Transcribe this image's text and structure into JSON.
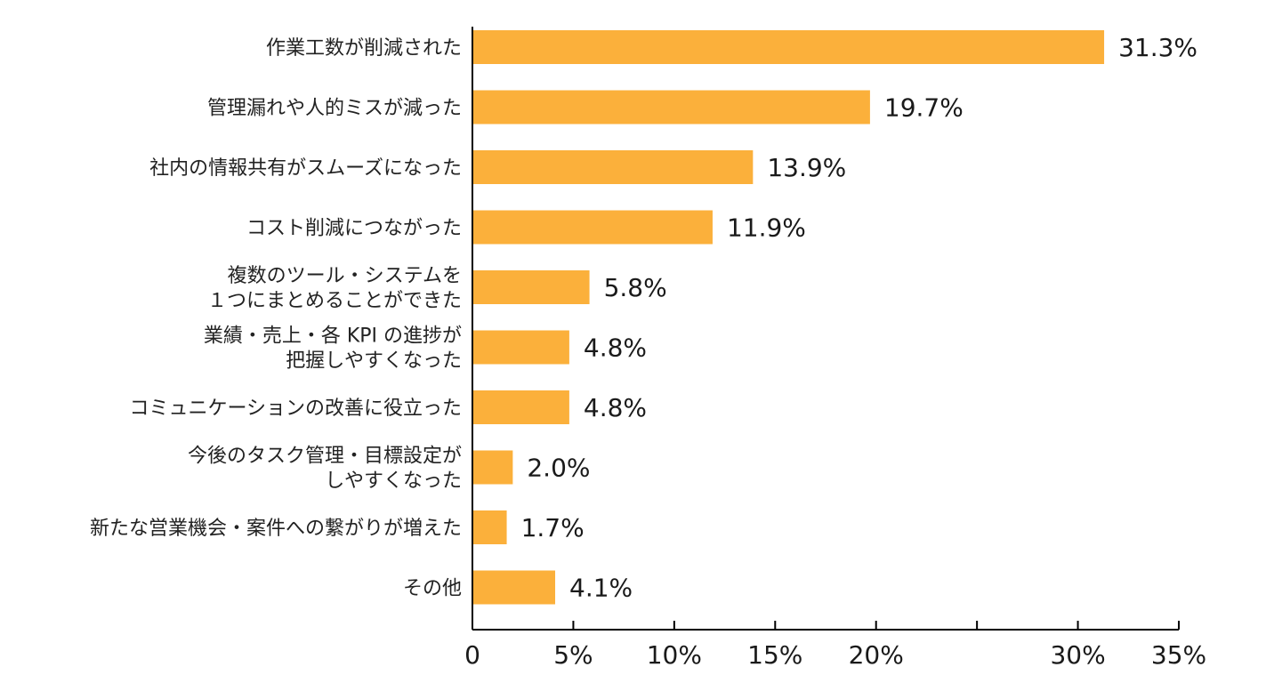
{
  "chart_data": {
    "type": "bar",
    "orientation": "horizontal",
    "title": "",
    "xlabel": "",
    "ylabel": "",
    "xlim": [
      0,
      35
    ],
    "grid": false,
    "bar_color": "#FBB03B",
    "categories": [
      [
        "作業工数が削減された"
      ],
      [
        "管理漏れや人的ミスが減った"
      ],
      [
        "社内の情報共有がスムーズになった"
      ],
      [
        "コスト削減につながった"
      ],
      [
        "複数のツール・システムを",
        "１つにまとめることができた"
      ],
      [
        "業績・売上・各 KPI の進捗が",
        "把握しやすくなった"
      ],
      [
        "コミュニケーションの改善に役立った"
      ],
      [
        "今後のタスク管理・目標設定が",
        "しやすくなった"
      ],
      [
        "新たな営業機会・案件への繋がりが増えた"
      ],
      [
        "その他"
      ]
    ],
    "values": [
      31.3,
      19.7,
      13.9,
      11.9,
      5.8,
      4.8,
      4.8,
      2.0,
      1.7,
      4.1
    ],
    "value_labels": [
      "31.3%",
      "19.7%",
      "13.9%",
      "11.9%",
      "5.8%",
      "4.8%",
      "4.8%",
      "2.0%",
      "1.7%",
      "4.1%"
    ],
    "x_ticks": [
      0,
      5,
      10,
      15,
      20,
      25,
      30,
      35
    ],
    "x_tick_labels": [
      "0",
      "5%",
      "10%",
      "15%",
      "20%",
      "",
      "30%",
      "35%"
    ]
  }
}
